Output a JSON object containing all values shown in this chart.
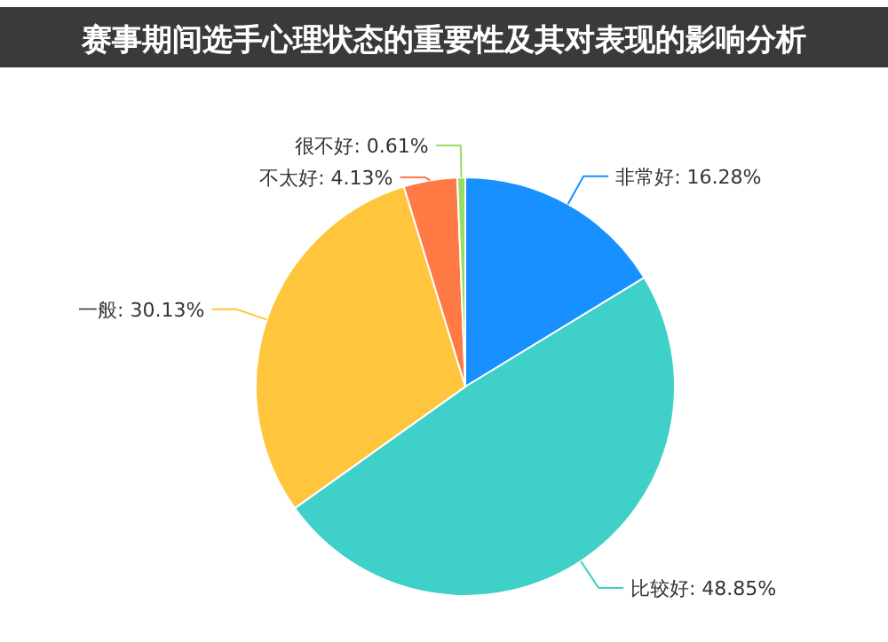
{
  "chart_data": {
    "type": "pie",
    "title": "赛事期间选手心理状态的重要性及其对表现的影响分析",
    "categories": [
      "非常好",
      "比较好",
      "一般",
      "不太好",
      "很不好"
    ],
    "values": [
      16.28,
      48.85,
      30.13,
      4.13,
      0.61
    ],
    "colors": [
      "#1890ff",
      "#3fd0c9",
      "#ffc53d",
      "#ff7a45",
      "#95de64"
    ],
    "value_labels": [
      ": 16.28%",
      ": 48.85%",
      ": 30.13%",
      ": 4.13%",
      ": 0.61%"
    ]
  }
}
